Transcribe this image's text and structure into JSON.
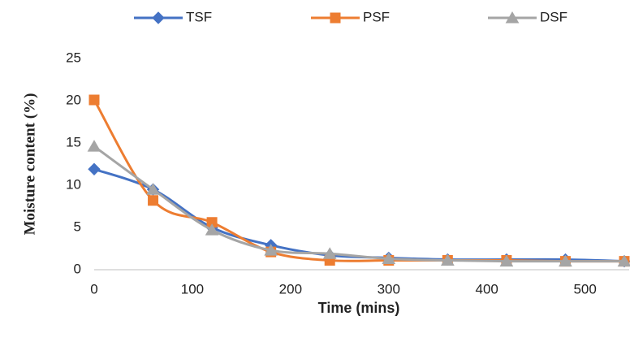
{
  "chart_data": {
    "type": "line",
    "x_label": "Time (mins)",
    "y_label": "Moisture content (%)",
    "x": [
      0,
      60,
      120,
      180,
      240,
      300,
      360,
      420,
      480,
      540
    ],
    "series": [
      {
        "name": "TSF",
        "color": "#4472c4",
        "marker": "diamond",
        "values": [
          11.9,
          9.5,
          5.0,
          2.9,
          1.7,
          1.4,
          1.2,
          1.2,
          1.2,
          1.0
        ]
      },
      {
        "name": "PSF",
        "color": "#ed7d31",
        "marker": "square",
        "values": [
          20.1,
          8.2,
          5.6,
          2.1,
          1.1,
          1.1,
          1.1,
          1.1,
          1.0,
          1.0
        ]
      },
      {
        "name": "DSF",
        "color": "#a5a5a5",
        "marker": "triangle",
        "values": [
          14.6,
          9.5,
          4.7,
          2.3,
          1.9,
          1.3,
          1.1,
          1.0,
          1.0,
          1.0
        ]
      }
    ],
    "xlim": [
      0,
      540
    ],
    "xticks": [
      0,
      100,
      200,
      300,
      400,
      500
    ],
    "ylim": [
      0,
      25
    ],
    "yticks": [
      0,
      5,
      10,
      15,
      20,
      25
    ],
    "smooth": true,
    "grid": false,
    "legend": "top"
  }
}
